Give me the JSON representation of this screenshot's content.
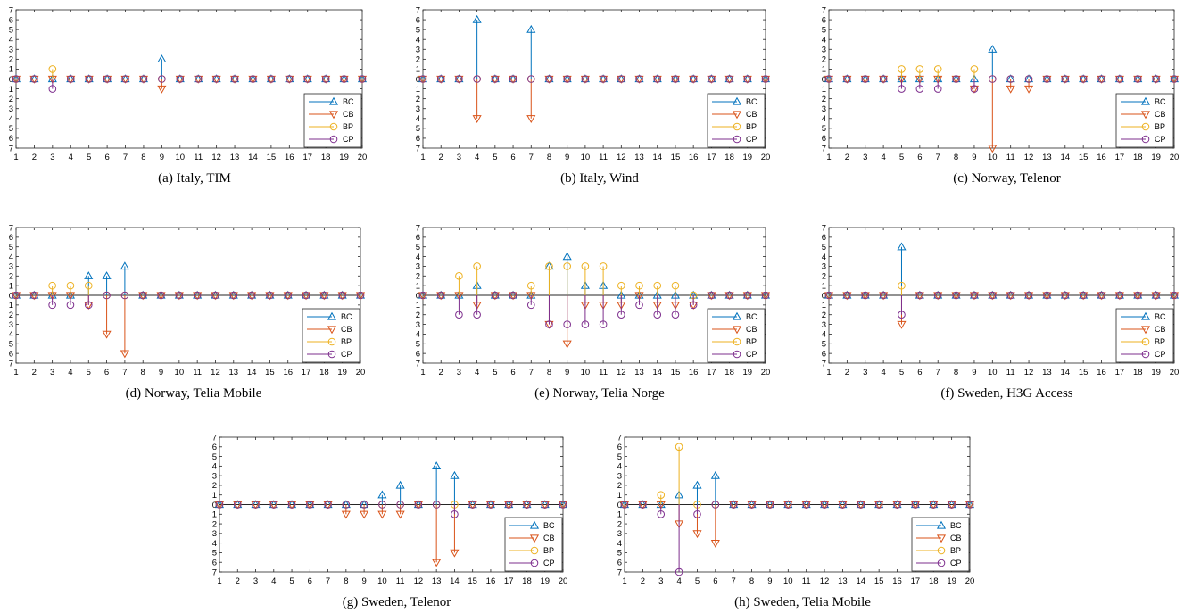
{
  "series_styles": [
    {
      "name": "BC",
      "color": "#0072BD",
      "marker": "triangle-up",
      "sign": 1
    },
    {
      "name": "CB",
      "color": "#D95319",
      "marker": "triangle-down",
      "sign": -1
    },
    {
      "name": "BP",
      "color": "#EDB120",
      "marker": "circle",
      "sign": 1
    },
    {
      "name": "CP",
      "color": "#7E2F8E",
      "marker": "circle",
      "sign": -1
    }
  ],
  "chart_data": [
    {
      "type": "stem",
      "caption": "(a) Italy, TIM",
      "x": [
        1,
        2,
        3,
        4,
        5,
        6,
        7,
        8,
        9,
        10,
        11,
        12,
        13,
        14,
        15,
        16,
        17,
        18,
        19,
        20
      ],
      "y_tick_labels": [
        "7",
        "6",
        "5",
        "4",
        "3",
        "2",
        "1",
        "0",
        "1",
        "2",
        "3",
        "4",
        "5",
        "6",
        "7"
      ],
      "ylim": [
        -7,
        7
      ],
      "legend_position": "bottom-right",
      "series": [
        {
          "name": "BC",
          "values": [
            0,
            0,
            0,
            0,
            0,
            0,
            0,
            0,
            2,
            0,
            0,
            0,
            0,
            0,
            0,
            0,
            0,
            0,
            0,
            0
          ]
        },
        {
          "name": "CB",
          "values": [
            0,
            0,
            0,
            0,
            0,
            0,
            0,
            0,
            1,
            0,
            0,
            0,
            0,
            0,
            0,
            0,
            0,
            0,
            0,
            0
          ]
        },
        {
          "name": "BP",
          "values": [
            0,
            0,
            1,
            0,
            0,
            0,
            0,
            0,
            0,
            0,
            0,
            0,
            0,
            0,
            0,
            0,
            0,
            0,
            0,
            0
          ]
        },
        {
          "name": "CP",
          "values": [
            0,
            0,
            1,
            0,
            0,
            0,
            0,
            0,
            0,
            0,
            0,
            0,
            0,
            0,
            0,
            0,
            0,
            0,
            0,
            0
          ]
        }
      ]
    },
    {
      "type": "stem",
      "caption": "(b) Italy, Wind",
      "x": [
        1,
        2,
        3,
        4,
        5,
        6,
        7,
        8,
        9,
        10,
        11,
        12,
        13,
        14,
        15,
        16,
        17,
        18,
        19,
        20
      ],
      "y_tick_labels": [
        "7",
        "6",
        "5",
        "4",
        "3",
        "2",
        "1",
        "0",
        "1",
        "2",
        "3",
        "4",
        "5",
        "6",
        "7"
      ],
      "ylim": [
        -7,
        7
      ],
      "legend_position": "bottom-right",
      "series": [
        {
          "name": "BC",
          "values": [
            0,
            0,
            0,
            6,
            0,
            0,
            5,
            0,
            0,
            0,
            0,
            0,
            0,
            0,
            0,
            0,
            0,
            0,
            0,
            0
          ]
        },
        {
          "name": "CB",
          "values": [
            0,
            0,
            0,
            4,
            0,
            0,
            4,
            0,
            0,
            0,
            0,
            0,
            0,
            0,
            0,
            0,
            0,
            0,
            0,
            0
          ]
        },
        {
          "name": "BP",
          "values": [
            0,
            0,
            0,
            0,
            0,
            0,
            0,
            0,
            0,
            0,
            0,
            0,
            0,
            0,
            0,
            0,
            0,
            0,
            0,
            0
          ]
        },
        {
          "name": "CP",
          "values": [
            0,
            0,
            0,
            0,
            0,
            0,
            0,
            0,
            0,
            0,
            0,
            0,
            0,
            0,
            0,
            0,
            0,
            0,
            0,
            0
          ]
        }
      ]
    },
    {
      "type": "stem",
      "caption": "(c) Norway, Telenor",
      "x": [
        1,
        2,
        3,
        4,
        5,
        6,
        7,
        8,
        9,
        10,
        11,
        12,
        13,
        14,
        15,
        16,
        17,
        18,
        19,
        20
      ],
      "y_tick_labels": [
        "7",
        "6",
        "5",
        "4",
        "3",
        "2",
        "1",
        "0",
        "1",
        "2",
        "3",
        "4",
        "5",
        "6",
        "7"
      ],
      "ylim": [
        -7,
        7
      ],
      "legend_position": "bottom-right",
      "series": [
        {
          "name": "BC",
          "values": [
            0,
            0,
            0,
            0,
            0,
            0,
            0,
            0,
            0,
            3,
            0,
            0,
            0,
            0,
            0,
            0,
            0,
            0,
            0,
            0
          ]
        },
        {
          "name": "CB",
          "values": [
            0,
            0,
            0,
            0,
            0,
            0,
            0,
            0,
            1,
            7,
            1,
            1,
            0,
            0,
            0,
            0,
            0,
            0,
            0,
            0
          ]
        },
        {
          "name": "BP",
          "values": [
            0,
            0,
            0,
            0,
            1,
            1,
            1,
            0,
            1,
            0,
            0,
            0,
            0,
            0,
            0,
            0,
            0,
            0,
            0,
            0
          ]
        },
        {
          "name": "CP",
          "values": [
            0,
            0,
            0,
            0,
            1,
            1,
            1,
            0,
            1,
            0,
            0,
            0,
            0,
            0,
            0,
            0,
            0,
            0,
            0,
            0
          ]
        }
      ]
    },
    {
      "type": "stem",
      "caption": "(d) Norway, Telia Mobile",
      "x": [
        1,
        2,
        3,
        4,
        5,
        6,
        7,
        8,
        9,
        10,
        11,
        12,
        13,
        14,
        15,
        16,
        17,
        18,
        19,
        20
      ],
      "y_tick_labels": [
        "7",
        "6",
        "5",
        "4",
        "3",
        "2",
        "1",
        "0",
        "1",
        "2",
        "3",
        "4",
        "5",
        "6",
        "7"
      ],
      "ylim": [
        -7,
        7
      ],
      "legend_position": "bottom-right",
      "series": [
        {
          "name": "BC",
          "values": [
            0,
            0,
            0,
            0,
            2,
            2,
            3,
            0,
            0,
            0,
            0,
            0,
            0,
            0,
            0,
            0,
            0,
            0,
            0,
            0
          ]
        },
        {
          "name": "CB",
          "values": [
            0,
            0,
            0,
            0,
            1,
            4,
            6,
            0,
            0,
            0,
            0,
            0,
            0,
            0,
            0,
            0,
            0,
            0,
            0,
            0
          ]
        },
        {
          "name": "BP",
          "values": [
            0,
            0,
            1,
            1,
            1,
            0,
            0,
            0,
            0,
            0,
            0,
            0,
            0,
            0,
            0,
            0,
            0,
            0,
            0,
            0
          ]
        },
        {
          "name": "CP",
          "values": [
            0,
            0,
            1,
            1,
            1,
            0,
            0,
            0,
            0,
            0,
            0,
            0,
            0,
            0,
            0,
            0,
            0,
            0,
            0,
            0
          ]
        }
      ]
    },
    {
      "type": "stem",
      "caption": "(e) Norway, Telia Norge",
      "x": [
        1,
        2,
        3,
        4,
        5,
        6,
        7,
        8,
        9,
        10,
        11,
        12,
        13,
        14,
        15,
        16,
        17,
        18,
        19,
        20
      ],
      "y_tick_labels": [
        "7",
        "6",
        "5",
        "4",
        "3",
        "2",
        "1",
        "0",
        "1",
        "2",
        "3",
        "4",
        "5",
        "6",
        "7"
      ],
      "ylim": [
        -7,
        7
      ],
      "legend_position": "bottom-right",
      "series": [
        {
          "name": "BC",
          "values": [
            0,
            0,
            0,
            1,
            0,
            0,
            0,
            3,
            4,
            1,
            1,
            0,
            0,
            0,
            0,
            0,
            0,
            0,
            0,
            0
          ]
        },
        {
          "name": "CB",
          "values": [
            0,
            0,
            0,
            1,
            0,
            0,
            0,
            3,
            5,
            1,
            1,
            1,
            0,
            1,
            1,
            1,
            0,
            0,
            0,
            0
          ]
        },
        {
          "name": "BP",
          "values": [
            0,
            0,
            2,
            3,
            0,
            0,
            1,
            3,
            3,
            3,
            3,
            1,
            1,
            1,
            1,
            0,
            0,
            0,
            0,
            0
          ]
        },
        {
          "name": "CP",
          "values": [
            0,
            0,
            2,
            2,
            0,
            0,
            1,
            3,
            3,
            3,
            3,
            2,
            1,
            2,
            2,
            1,
            0,
            0,
            0,
            0
          ]
        }
      ]
    },
    {
      "type": "stem",
      "caption": "(f) Sweden, H3G Access",
      "x": [
        1,
        2,
        3,
        4,
        5,
        6,
        7,
        8,
        9,
        10,
        11,
        12,
        13,
        14,
        15,
        16,
        17,
        18,
        19,
        20
      ],
      "y_tick_labels": [
        "7",
        "6",
        "5",
        "4",
        "3",
        "2",
        "1",
        "0",
        "1",
        "2",
        "3",
        "4",
        "5",
        "6",
        "7"
      ],
      "ylim": [
        -7,
        7
      ],
      "legend_position": "bottom-right",
      "series": [
        {
          "name": "BC",
          "values": [
            0,
            0,
            0,
            0,
            5,
            0,
            0,
            0,
            0,
            0,
            0,
            0,
            0,
            0,
            0,
            0,
            0,
            0,
            0,
            0
          ]
        },
        {
          "name": "CB",
          "values": [
            0,
            0,
            0,
            0,
            3,
            0,
            0,
            0,
            0,
            0,
            0,
            0,
            0,
            0,
            0,
            0,
            0,
            0,
            0,
            0
          ]
        },
        {
          "name": "BP",
          "values": [
            0,
            0,
            0,
            0,
            1,
            0,
            0,
            0,
            0,
            0,
            0,
            0,
            0,
            0,
            0,
            0,
            0,
            0,
            0,
            0
          ]
        },
        {
          "name": "CP",
          "values": [
            0,
            0,
            0,
            0,
            2,
            0,
            0,
            0,
            0,
            0,
            0,
            0,
            0,
            0,
            0,
            0,
            0,
            0,
            0,
            0
          ]
        }
      ]
    },
    {
      "type": "stem",
      "caption": "(g) Sweden, Telenor",
      "x": [
        1,
        2,
        3,
        4,
        5,
        6,
        7,
        8,
        9,
        10,
        11,
        12,
        13,
        14,
        15,
        16,
        17,
        18,
        19,
        20
      ],
      "y_tick_labels": [
        "7",
        "6",
        "5",
        "4",
        "3",
        "2",
        "1",
        "0",
        "1",
        "2",
        "3",
        "4",
        "5",
        "6",
        "7"
      ],
      "ylim": [
        -7,
        7
      ],
      "legend_position": "bottom-right",
      "series": [
        {
          "name": "BC",
          "values": [
            0,
            0,
            0,
            0,
            0,
            0,
            0,
            0,
            0,
            1,
            2,
            0,
            4,
            3,
            0,
            0,
            0,
            0,
            0,
            0
          ]
        },
        {
          "name": "CB",
          "values": [
            0,
            0,
            0,
            0,
            0,
            0,
            0,
            1,
            1,
            1,
            1,
            0,
            6,
            5,
            0,
            0,
            0,
            0,
            0,
            0
          ]
        },
        {
          "name": "BP",
          "values": [
            0,
            0,
            0,
            0,
            0,
            0,
            0,
            0,
            0,
            0,
            0,
            0,
            0,
            0,
            0,
            0,
            0,
            0,
            0,
            0
          ]
        },
        {
          "name": "CP",
          "values": [
            0,
            0,
            0,
            0,
            0,
            0,
            0,
            0,
            0,
            0,
            0,
            0,
            0,
            1,
            0,
            0,
            0,
            0,
            0,
            0
          ]
        }
      ]
    },
    {
      "type": "stem",
      "caption": "(h) Sweden, Telia Mobile",
      "x": [
        1,
        2,
        3,
        4,
        5,
        6,
        7,
        8,
        9,
        10,
        11,
        12,
        13,
        14,
        15,
        16,
        17,
        18,
        19,
        20
      ],
      "y_tick_labels": [
        "7",
        "6",
        "5",
        "4",
        "3",
        "2",
        "1",
        "0",
        "1",
        "2",
        "3",
        "4",
        "5",
        "6",
        "7"
      ],
      "ylim": [
        -7,
        7
      ],
      "legend_position": "bottom-right",
      "series": [
        {
          "name": "BC",
          "values": [
            0,
            0,
            0,
            1,
            2,
            3,
            0,
            0,
            0,
            0,
            0,
            0,
            0,
            0,
            0,
            0,
            0,
            0,
            0,
            0
          ]
        },
        {
          "name": "CB",
          "values": [
            0,
            0,
            0,
            2,
            3,
            4,
            0,
            0,
            0,
            0,
            0,
            0,
            0,
            0,
            0,
            0,
            0,
            0,
            0,
            0
          ]
        },
        {
          "name": "BP",
          "values": [
            0,
            0,
            1,
            6,
            0,
            0,
            0,
            0,
            0,
            0,
            0,
            0,
            0,
            0,
            0,
            0,
            0,
            0,
            0,
            0
          ]
        },
        {
          "name": "CP",
          "values": [
            0,
            0,
            1,
            7,
            1,
            0,
            0,
            0,
            0,
            0,
            0,
            0,
            0,
            0,
            0,
            0,
            0,
            0,
            0,
            0
          ]
        }
      ]
    }
  ]
}
